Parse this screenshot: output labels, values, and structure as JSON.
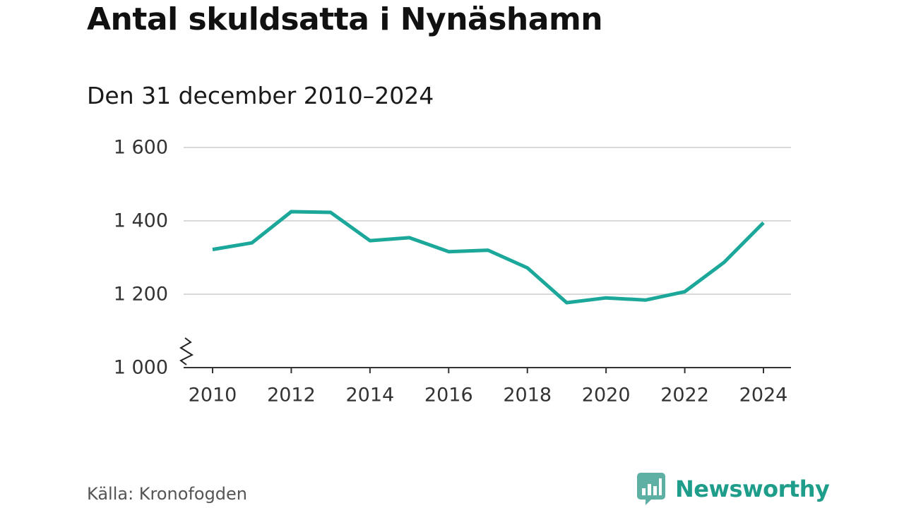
{
  "header": {
    "title": "Antal skuldsatta i Nynäshamn",
    "subtitle": "Den 31 december 2010–2024"
  },
  "footer": {
    "source": "Källa: Kronofogden",
    "brand": "Newsworthy"
  },
  "colors": {
    "line": "#1ba89a",
    "grid": "#d9d9d9",
    "axis": "#333333",
    "brand": "#1f9d8b"
  },
  "icons": {
    "brand_logo": "bar-chart-speech-bubble-icon",
    "axis_break": "zigzag-axis-break-icon"
  },
  "chart_data": {
    "type": "line",
    "title": "Antal skuldsatta i Nynäshamn",
    "subtitle": "Den 31 december 2010–2024",
    "xlabel": "",
    "ylabel": "",
    "x": [
      2010,
      2011,
      2012,
      2013,
      2014,
      2015,
      2016,
      2017,
      2018,
      2019,
      2020,
      2021,
      2022,
      2023,
      2024
    ],
    "series": [
      {
        "name": "Antal skuldsatta",
        "values": [
          1322,
          1340,
          1425,
          1423,
          1346,
          1354,
          1316,
          1320,
          1272,
          1177,
          1190,
          1184,
          1207,
          1287,
          1395
        ]
      }
    ],
    "ylim": [
      1000,
      1600
    ],
    "yticks": [
      1000,
      1200,
      1400,
      1600
    ],
    "ytick_labels": [
      "1 000",
      "1 200",
      "1 400",
      "1 600"
    ],
    "xticks": [
      2010,
      2012,
      2014,
      2016,
      2018,
      2020,
      2022,
      2024
    ],
    "xtick_labels": [
      "2010",
      "2012",
      "2014",
      "2016",
      "2018",
      "2020",
      "2022",
      "2024"
    ],
    "grid": true,
    "axis_break": true
  }
}
